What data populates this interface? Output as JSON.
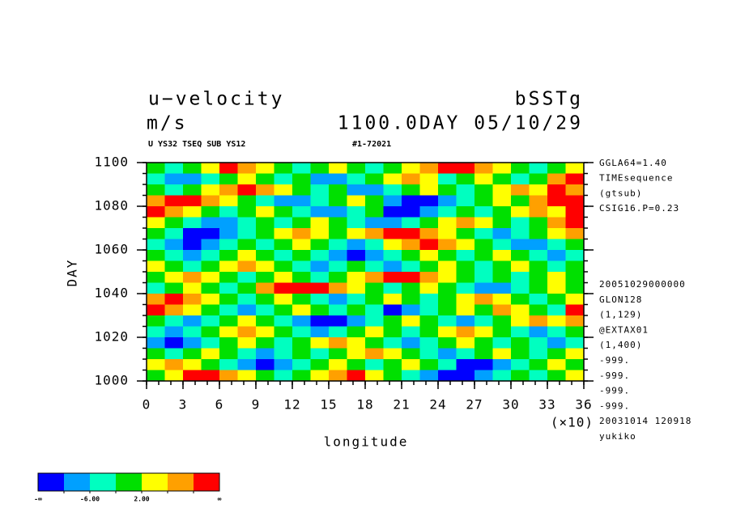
{
  "chart_data": {
    "type": "heatmap",
    "title": "u−velocity",
    "units": "m/s",
    "experiment": "bSSTg",
    "time_label": "1100.0DAY 05/10/29",
    "subtitle": "U YS32 TSEQ SUB YS12",
    "run_id": "#1-72021",
    "xlabel": "longitude",
    "x_multiplier": "(×10)",
    "ylabel": "DAY",
    "xlim": [
      0,
      36
    ],
    "ylim": [
      1000,
      1100
    ],
    "xticks": [
      0,
      3,
      6,
      9,
      12,
      15,
      18,
      21,
      24,
      27,
      30,
      33,
      36
    ],
    "yticks": [
      1000,
      1020,
      1040,
      1060,
      1080,
      1100
    ],
    "xminorticks": [
      0,
      1,
      2,
      3,
      4,
      5,
      6,
      7,
      8,
      9,
      10,
      11,
      12,
      13,
      14,
      15,
      16,
      17,
      18,
      19,
      20,
      21,
      22,
      23,
      24,
      25,
      26,
      27,
      28,
      29,
      30,
      31,
      32,
      33,
      34,
      35,
      36
    ],
    "yminorticks": [
      1000,
      1005,
      1010,
      1015,
      1020,
      1025,
      1030,
      1035,
      1040,
      1045,
      1050,
      1055,
      1060,
      1065,
      1070,
      1075,
      1080,
      1085,
      1090,
      1095,
      1100
    ],
    "x": [
      0.75,
      2.25,
      3.75,
      5.25,
      6.75,
      8.25,
      9.75,
      11.25,
      12.75,
      14.25,
      15.75,
      17.25,
      18.75,
      20.25,
      21.75,
      23.25,
      24.75,
      26.25,
      27.75,
      29.25,
      30.75,
      32.25,
      33.75,
      35.25
    ],
    "y": [
      1097.5,
      1092.5,
      1087.5,
      1082.5,
      1077.5,
      1072.5,
      1067.5,
      1062.5,
      1057.5,
      1052.5,
      1047.5,
      1042.5,
      1037.5,
      1032.5,
      1027.5,
      1022.5,
      1017.5,
      1012.5,
      1007.5,
      1002.5
    ],
    "values": [
      [
        0,
        -4,
        0,
        4,
        12,
        8,
        4,
        0,
        -4,
        0,
        4,
        0,
        -4,
        0,
        4,
        8,
        12,
        12,
        8,
        4,
        0,
        -4,
        0,
        4
      ],
      [
        -4,
        -8,
        -8,
        -4,
        0,
        4,
        0,
        -4,
        0,
        -8,
        -8,
        -4,
        0,
        4,
        8,
        4,
        -4,
        0,
        4,
        0,
        -4,
        0,
        8,
        12
      ],
      [
        0,
        -4,
        0,
        4,
        8,
        12,
        8,
        4,
        0,
        -4,
        0,
        -8,
        -8,
        -4,
        0,
        4,
        0,
        -4,
        0,
        4,
        8,
        4,
        12,
        8
      ],
      [
        8,
        12,
        12,
        8,
        4,
        0,
        -4,
        -8,
        -8,
        -4,
        0,
        4,
        0,
        -8,
        -12,
        -12,
        -8,
        -4,
        0,
        4,
        0,
        8,
        12,
        12
      ],
      [
        12,
        8,
        4,
        0,
        -4,
        0,
        4,
        0,
        -4,
        -8,
        -8,
        -4,
        0,
        -12,
        -12,
        -8,
        -4,
        0,
        -4,
        0,
        4,
        8,
        4,
        12
      ],
      [
        4,
        0,
        -4,
        -8,
        -8,
        -4,
        0,
        -4,
        0,
        4,
        0,
        -4,
        -8,
        -8,
        -4,
        0,
        4,
        8,
        4,
        0,
        -4,
        0,
        8,
        12
      ],
      [
        0,
        -4,
        -12,
        -12,
        -8,
        -4,
        0,
        4,
        8,
        4,
        0,
        4,
        8,
        12,
        12,
        8,
        4,
        0,
        -4,
        -8,
        -4,
        0,
        4,
        8
      ],
      [
        -4,
        -8,
        -12,
        -8,
        -4,
        0,
        -4,
        0,
        4,
        0,
        -4,
        -8,
        -4,
        4,
        8,
        12,
        8,
        4,
        0,
        -4,
        -8,
        -8,
        -4,
        0
      ],
      [
        0,
        -4,
        -8,
        -4,
        0,
        4,
        0,
        -4,
        0,
        -4,
        -8,
        -12,
        -8,
        -4,
        0,
        4,
        0,
        -4,
        0,
        4,
        0,
        -4,
        -8,
        -4
      ],
      [
        4,
        0,
        -4,
        0,
        4,
        8,
        4,
        0,
        -4,
        -8,
        -4,
        0,
        -4,
        -8,
        -4,
        0,
        4,
        0,
        -4,
        0,
        4,
        0,
        -4,
        0
      ],
      [
        0,
        4,
        8,
        4,
        0,
        -4,
        0,
        4,
        0,
        -4,
        0,
        4,
        8,
        12,
        12,
        8,
        4,
        0,
        -4,
        0,
        -4,
        0,
        4,
        0
      ],
      [
        -4,
        0,
        4,
        0,
        -4,
        0,
        8,
        12,
        12,
        12,
        8,
        4,
        0,
        -4,
        0,
        4,
        0,
        -4,
        -8,
        -8,
        -4,
        0,
        4,
        0
      ],
      [
        8,
        12,
        8,
        4,
        0,
        -4,
        0,
        4,
        0,
        -4,
        -8,
        -4,
        0,
        4,
        0,
        -4,
        0,
        4,
        8,
        4,
        0,
        -4,
        0,
        4
      ],
      [
        12,
        8,
        4,
        0,
        -4,
        -8,
        -4,
        0,
        4,
        0,
        -4,
        0,
        -4,
        -12,
        -8,
        -4,
        0,
        4,
        0,
        8,
        4,
        0,
        -4,
        12
      ],
      [
        0,
        -4,
        -8,
        -4,
        0,
        4,
        0,
        -4,
        -8,
        -12,
        -12,
        -8,
        -4,
        0,
        4,
        0,
        -4,
        -8,
        -4,
        0,
        4,
        8,
        4,
        8
      ],
      [
        -4,
        -8,
        -4,
        0,
        4,
        8,
        4,
        0,
        -4,
        -8,
        -4,
        0,
        4,
        0,
        -4,
        0,
        4,
        8,
        4,
        0,
        -4,
        -8,
        -4,
        0
      ],
      [
        -8,
        -12,
        -8,
        -4,
        0,
        4,
        0,
        -4,
        0,
        4,
        8,
        4,
        0,
        -4,
        -8,
        -4,
        0,
        4,
        0,
        -4,
        0,
        -4,
        -8,
        -4
      ],
      [
        0,
        -4,
        0,
        4,
        0,
        -4,
        -8,
        -4,
        0,
        -4,
        0,
        4,
        8,
        4,
        0,
        -4,
        -8,
        -4,
        0,
        4,
        0,
        -4,
        0,
        4
      ],
      [
        4,
        8,
        4,
        0,
        -4,
        -8,
        -12,
        -8,
        -4,
        0,
        4,
        0,
        -4,
        0,
        4,
        0,
        -4,
        -12,
        -12,
        -8,
        -4,
        0,
        4,
        0
      ],
      [
        0,
        4,
        12,
        12,
        8,
        4,
        0,
        -4,
        0,
        4,
        8,
        12,
        4,
        0,
        -4,
        -8,
        -12,
        -12,
        -8,
        -4,
        0,
        -4,
        0,
        4
      ]
    ],
    "colorbar": {
      "levels": [
        -10,
        -6,
        -2,
        2,
        6,
        10
      ],
      "colors": [
        "#0000ff",
        "#00a0ff",
        "#00ffc0",
        "#00e000",
        "#ffff00",
        "#ffa000",
        "#ff0000"
      ],
      "ticks": [
        {
          "value": -6,
          "label": "-6.00"
        },
        {
          "value": 2,
          "label": "2.00"
        }
      ],
      "low_label": "-∞",
      "high_label": "∞"
    },
    "annotations_top": [
      "GGLA64=1.40",
      "TIMEsequence",
      "(gtsub)",
      "CSIG16.P=0.23"
    ],
    "annotations_bottom": [
      "20051029000000",
      "GLON128",
      "(1,129)",
      "@EXTAX01",
      "(1,400)",
      "-999.",
      "-999.",
      "-999.",
      "-999.",
      "20031014 120918",
      "yukiko"
    ]
  }
}
